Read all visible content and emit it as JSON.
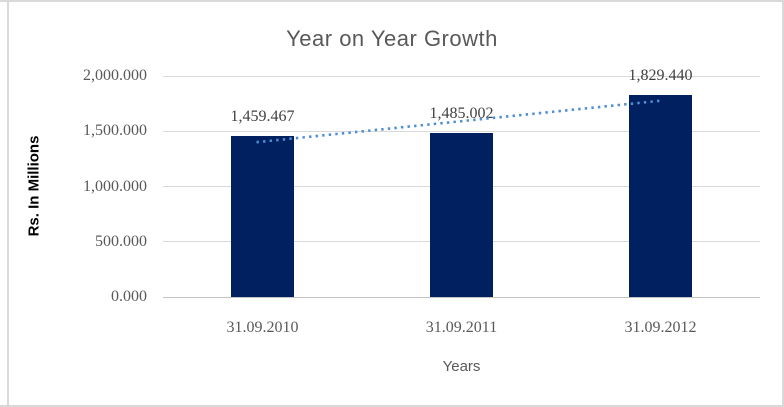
{
  "chart_data": {
    "type": "bar",
    "title": "Year on Year Growth",
    "categories": [
      "31.09.2010",
      "31.09.2011",
      "31.09.2012"
    ],
    "values": [
      1459.467,
      1485.002,
      1829.44
    ],
    "data_labels": [
      "1,459.467",
      "1,485.002",
      "1,829.440"
    ],
    "xlabel": "Years",
    "ylabel": "Rs. In Millions",
    "ylim": [
      0,
      2000
    ],
    "y_ticks": [
      {
        "value": 2000,
        "label": "2,000.000"
      },
      {
        "value": 1500,
        "label": "1,500.000"
      },
      {
        "value": 1000,
        "label": "1,000.000"
      },
      {
        "value": 500,
        "label": "500.000"
      },
      {
        "value": 0,
        "label": "0.000"
      }
    ],
    "grid": true,
    "legend": "none",
    "bar_color": "#002060",
    "trendline": {
      "type": "linear",
      "style": "dotted",
      "color": "#4e8ed2"
    }
  },
  "colors": {
    "frame_border": "#d9d9d9",
    "gridline": "#d9d9d9",
    "axis_line": "#c3c3c3",
    "text_gray": "#595959",
    "data_label": "#404040"
  }
}
